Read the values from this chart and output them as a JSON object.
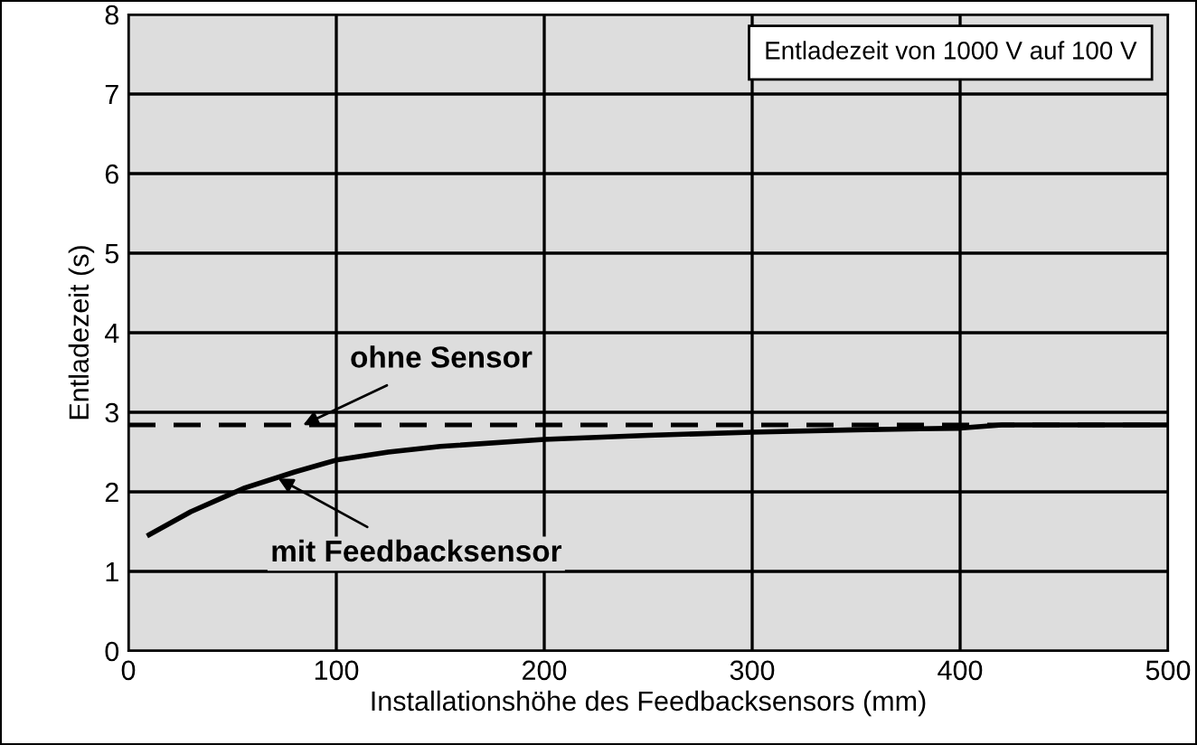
{
  "chart_data": {
    "type": "line",
    "xlabel": "Installationshöhe des Feedbacksensors (mm)",
    "ylabel": "Entladezeit (s)",
    "x": [
      10,
      30,
      56,
      80,
      100,
      125,
      150,
      200,
      250,
      300,
      350,
      400,
      420,
      500
    ],
    "series": [
      {
        "color": "#000000",
        "values": [
          1.46,
          1.75,
          2.05,
          2.25,
          2.4,
          2.5,
          2.57,
          2.66,
          2.71,
          2.75,
          2.78,
          2.8,
          2.84,
          2.84
        ]
      }
    ],
    "xlim": [
      0,
      500
    ],
    "xticks": [
      0,
      100,
      200,
      300,
      400,
      500
    ],
    "ylim": [
      0,
      8
    ],
    "yticks": [
      0,
      1,
      2,
      3,
      4,
      5,
      6,
      7,
      8
    ],
    "ref_lines": [
      {
        "axis": "y",
        "value": 2.84,
        "color": "#000000",
        "line_style": "dashed"
      }
    ],
    "annotations": [
      "Entladezeit von 1000 V auf 100 V",
      {
        "text": "ohne Sensor",
        "x": 84,
        "y": 2.84
      },
      {
        "text": "mit Feedbacksensor",
        "x": 72,
        "y": 2.17
      }
    ],
    "grid": true,
    "line_style": "solid",
    "marker": "none"
  }
}
